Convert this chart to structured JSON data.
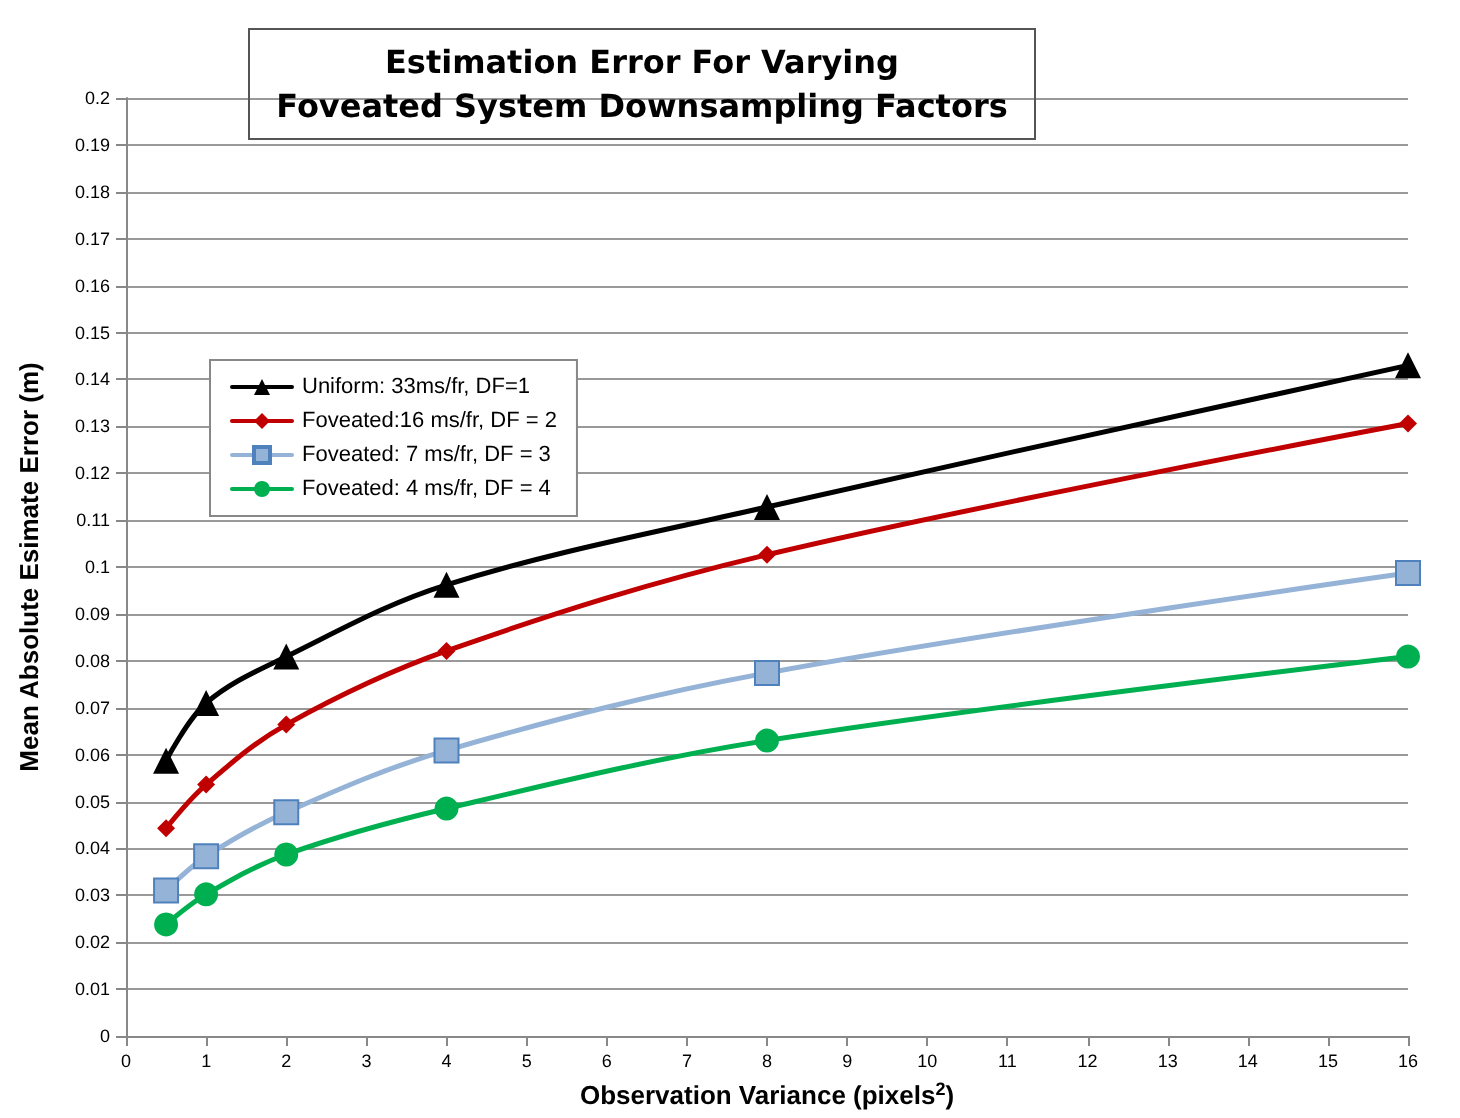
{
  "chart_data": {
    "type": "line",
    "title": "Estimation Error For Varying\nFoveated System Downsampling Factors",
    "xlabel": "Observation Variance (pixels$^{2}$)",
    "ylabel": "Mean Absolute Esimate Error (m)",
    "x": [
      0.5,
      1,
      2,
      4,
      8,
      16
    ],
    "series": [
      {
        "name": "Uniform: 33ms/fr, DF=1",
        "color": "#000000",
        "marker": "triangle",
        "values": [
          0.0587,
          0.071,
          0.0809,
          0.0962,
          0.1128,
          0.143
        ]
      },
      {
        "name": "Foveated:16 ms/fr, DF = 2",
        "color": "#c00000",
        "marker": "diamond",
        "values": [
          0.0443,
          0.0536,
          0.0664,
          0.0821,
          0.1026,
          0.1306
        ]
      },
      {
        "name": "Foveated: 7 ms/fr, DF = 3",
        "color": "#95b3d7",
        "marker": "square",
        "values": [
          0.031,
          0.0383,
          0.0477,
          0.0609,
          0.0774,
          0.0987
        ]
      },
      {
        "name": "Foveated: 4 ms/fr, DF = 4",
        "color": "#00b050",
        "marker": "circle",
        "values": [
          0.0238,
          0.0302,
          0.0387,
          0.0485,
          0.063,
          0.0809
        ]
      }
    ],
    "xlim": [
      0,
      16
    ],
    "xticks": [
      0,
      1,
      2,
      3,
      4,
      5,
      6,
      7,
      8,
      9,
      10,
      11,
      12,
      13,
      14,
      15,
      16
    ],
    "ylim": [
      0,
      0.2
    ],
    "yticks": [
      0,
      0.01,
      0.02,
      0.03,
      0.04,
      0.05,
      0.06,
      0.07,
      0.08,
      0.09,
      0.1,
      0.11,
      0.12,
      0.13,
      0.14,
      0.15,
      0.16,
      0.17,
      0.18,
      0.19,
      0.2
    ],
    "grid": "y",
    "legend": "top left",
    "line_style": "solid"
  }
}
